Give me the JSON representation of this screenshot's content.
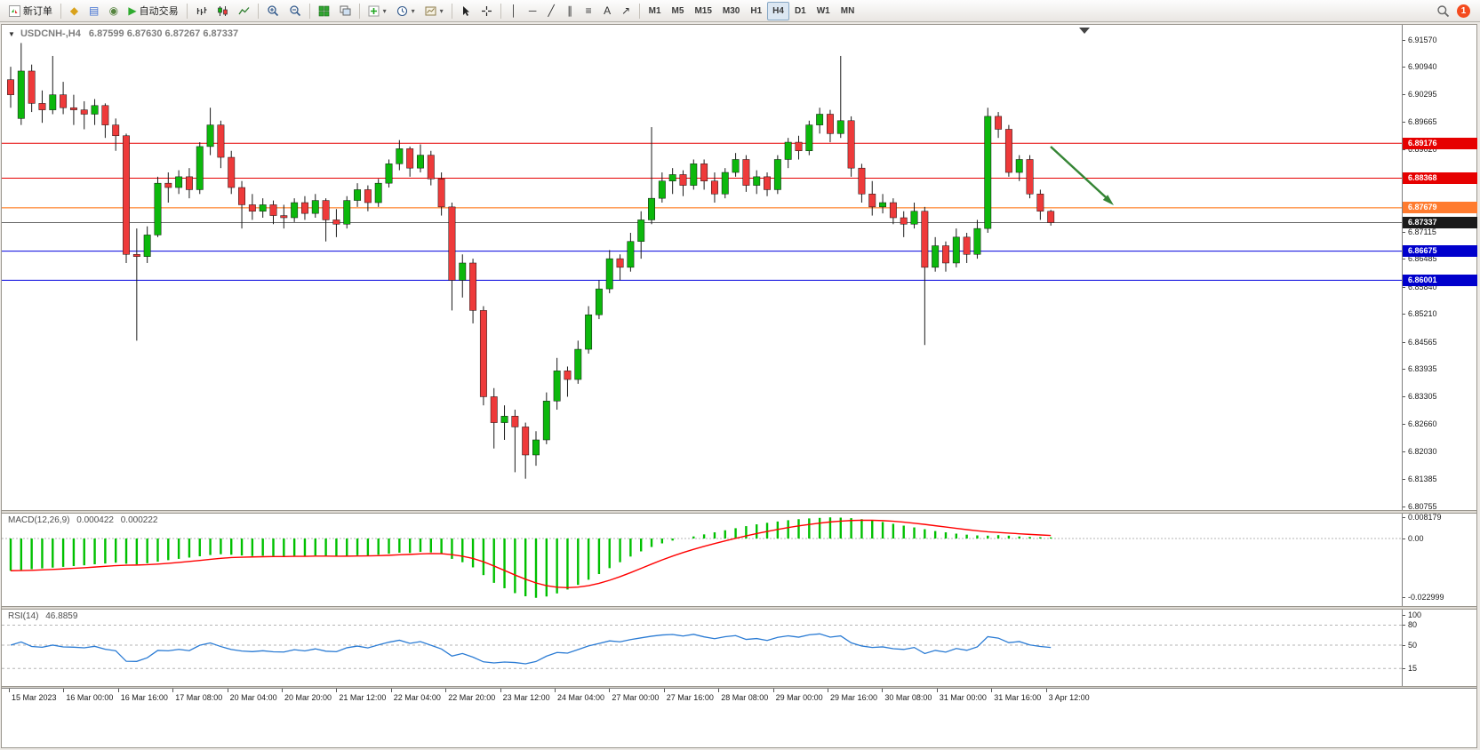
{
  "toolbar": {
    "new_order_label": "新订单",
    "auto_trading_label": "自动交易",
    "timeframes": [
      "M1",
      "M5",
      "M15",
      "M30",
      "H1",
      "H4",
      "D1",
      "W1",
      "MN"
    ],
    "active_timeframe": "H4",
    "notification_count": "1",
    "notification_color": "#f44b1e",
    "drawing_tools": [
      {
        "name": "vertical-line-icon",
        "glyph": "│"
      },
      {
        "name": "horizontal-line-icon",
        "glyph": "─"
      },
      {
        "name": "trendline-icon",
        "glyph": "╱"
      },
      {
        "name": "equidistant-channel-icon",
        "glyph": "∥"
      },
      {
        "name": "fibonacci-retracement-icon",
        "glyph": "≡"
      },
      {
        "name": "text-label-icon",
        "glyph": "A"
      },
      {
        "name": "arrows-icon",
        "glyph": "↗"
      }
    ]
  },
  "chart": {
    "title_symbol": "USDCNH-,H4",
    "title_ohlc": "6.87599 6.87630 6.87267 6.87337",
    "up_color": "#0cb80c",
    "down_color": "#ee3a3a",
    "wick_color": "#1a1a1a",
    "axis_labels": [
      "6.91570",
      "6.90940",
      "6.90295",
      "6.89665",
      "6.89020",
      "6.87115",
      "6.86485",
      "6.85840",
      "6.85210",
      "6.84565",
      "6.83935",
      "6.83305",
      "6.82660",
      "6.82030",
      "6.81385",
      "6.80755"
    ],
    "hlines": [
      {
        "price": 6.89176,
        "label": "6.89176",
        "line_color": "#e60000",
        "badge_bg": "#e60000"
      },
      {
        "price": 6.88368,
        "label": "6.88368",
        "line_color": "#e60000",
        "badge_bg": "#e60000"
      },
      {
        "price": 6.87679,
        "label": "6.87679",
        "line_color": "#ff6a00",
        "badge_bg": "#ff7b2e"
      },
      {
        "price": 6.86675,
        "label": "6.86675",
        "line_color": "#0000dd",
        "badge_bg": "#0000cc"
      },
      {
        "price": 6.86001,
        "label": "6.86001",
        "line_color": "#0000dd",
        "badge_bg": "#0000cc"
      },
      {
        "price": 6.87337,
        "label": "6.87337",
        "line_color": "#666666",
        "badge_bg": "#1a1a1a"
      }
    ],
    "arrow": {
      "color": "#358535"
    },
    "candles": [
      [
        6.9065,
        6.9095,
        6.9,
        6.903
      ],
      [
        6.8975,
        6.915,
        6.896,
        6.9085
      ],
      [
        6.9085,
        6.91,
        6.899,
        6.901
      ],
      [
        6.901,
        6.904,
        6.8965,
        6.8995
      ],
      [
        6.8995,
        6.912,
        6.8985,
        6.903
      ],
      [
        6.903,
        6.906,
        6.8985,
        6.9
      ],
      [
        6.9,
        6.903,
        6.896,
        6.8995
      ],
      [
        6.8995,
        6.9015,
        6.895,
        6.8985
      ],
      [
        6.8985,
        6.902,
        6.896,
        6.9005
      ],
      [
        6.9005,
        6.901,
        6.893,
        6.896
      ],
      [
        6.896,
        6.8975,
        6.89,
        6.8935
      ],
      [
        6.8935,
        6.894,
        6.864,
        6.866
      ],
      [
        6.866,
        6.872,
        6.846,
        6.8655
      ],
      [
        6.8655,
        6.8725,
        6.864,
        6.8705
      ],
      [
        6.8705,
        6.884,
        6.87,
        6.8825
      ],
      [
        6.8825,
        6.885,
        6.878,
        6.8815
      ],
      [
        6.8815,
        6.8855,
        6.88,
        6.884
      ],
      [
        6.884,
        6.886,
        6.879,
        6.881
      ],
      [
        6.881,
        6.892,
        6.88,
        6.891
      ],
      [
        6.891,
        6.9,
        6.889,
        6.896
      ],
      [
        6.896,
        6.897,
        6.886,
        6.8885
      ],
      [
        6.8885,
        6.89,
        6.88,
        6.8815
      ],
      [
        6.8815,
        6.883,
        6.872,
        6.8775
      ],
      [
        6.8775,
        6.88,
        6.874,
        6.876
      ],
      [
        6.876,
        6.879,
        6.8745,
        6.8775
      ],
      [
        6.8775,
        6.8785,
        6.873,
        6.875
      ],
      [
        6.875,
        6.8775,
        6.872,
        6.8745
      ],
      [
        6.8745,
        6.879,
        6.8735,
        6.878
      ],
      [
        6.878,
        6.8795,
        6.874,
        6.8755
      ],
      [
        6.8755,
        6.88,
        6.8745,
        6.8785
      ],
      [
        6.8785,
        6.879,
        6.869,
        6.874
      ],
      [
        6.874,
        6.8765,
        6.87,
        6.873
      ],
      [
        6.873,
        6.8795,
        6.872,
        6.8785
      ],
      [
        6.8785,
        6.8825,
        6.877,
        6.881
      ],
      [
        6.881,
        6.882,
        6.876,
        6.878
      ],
      [
        6.878,
        6.8835,
        6.877,
        6.8825
      ],
      [
        6.8825,
        6.888,
        6.8815,
        6.887
      ],
      [
        6.887,
        6.8925,
        6.8855,
        6.8905
      ],
      [
        6.8905,
        6.891,
        6.884,
        6.886
      ],
      [
        6.886,
        6.8915,
        6.885,
        6.889
      ],
      [
        6.889,
        6.89,
        6.882,
        6.8835
      ],
      [
        6.8835,
        6.885,
        6.875,
        6.877
      ],
      [
        6.877,
        6.878,
        6.853,
        6.86
      ],
      [
        6.86,
        6.866,
        6.856,
        6.864
      ],
      [
        6.864,
        6.865,
        6.85,
        6.853
      ],
      [
        6.853,
        6.854,
        6.831,
        6.833
      ],
      [
        6.833,
        6.835,
        6.821,
        6.827
      ],
      [
        6.827,
        6.831,
        6.823,
        6.8285
      ],
      [
        6.8285,
        6.83,
        6.8155,
        6.826
      ],
      [
        6.826,
        6.827,
        6.814,
        6.8195
      ],
      [
        6.8195,
        6.825,
        6.817,
        6.823
      ],
      [
        6.823,
        6.834,
        6.822,
        6.832
      ],
      [
        6.832,
        6.842,
        6.83,
        6.839
      ],
      [
        6.839,
        6.84,
        6.833,
        6.837
      ],
      [
        6.837,
        6.846,
        6.836,
        6.844
      ],
      [
        6.844,
        6.854,
        6.843,
        6.852
      ],
      [
        6.852,
        6.86,
        6.851,
        6.858
      ],
      [
        6.858,
        6.867,
        6.857,
        6.865
      ],
      [
        6.865,
        6.866,
        6.86,
        6.863
      ],
      [
        6.863,
        6.871,
        6.862,
        6.869
      ],
      [
        6.869,
        6.876,
        6.865,
        6.874
      ],
      [
        6.874,
        6.8955,
        6.873,
        6.879
      ],
      [
        6.879,
        6.885,
        6.878,
        6.883
      ],
      [
        6.883,
        6.886,
        6.88,
        6.8845
      ],
      [
        6.8845,
        6.8855,
        6.8795,
        6.882
      ],
      [
        6.882,
        6.888,
        6.881,
        6.887
      ],
      [
        6.887,
        6.888,
        6.881,
        6.883
      ],
      [
        6.883,
        6.885,
        6.878,
        6.88
      ],
      [
        6.88,
        6.886,
        6.879,
        6.885
      ],
      [
        6.885,
        6.8895,
        6.884,
        6.888
      ],
      [
        6.888,
        6.889,
        6.8805,
        6.882
      ],
      [
        6.882,
        6.8855,
        6.88,
        6.884
      ],
      [
        6.884,
        6.885,
        6.8795,
        6.881
      ],
      [
        6.881,
        6.889,
        6.88,
        6.888
      ],
      [
        6.888,
        6.893,
        6.886,
        6.892
      ],
      [
        6.892,
        6.8935,
        6.888,
        6.89
      ],
      [
        6.89,
        6.897,
        6.889,
        6.896
      ],
      [
        6.896,
        6.9,
        6.894,
        6.8985
      ],
      [
        6.8985,
        6.8995,
        6.892,
        6.894
      ],
      [
        6.894,
        6.912,
        6.893,
        6.897
      ],
      [
        6.897,
        6.898,
        6.884,
        6.886
      ],
      [
        6.886,
        6.887,
        6.878,
        6.88
      ],
      [
        6.88,
        6.883,
        6.875,
        6.877
      ],
      [
        6.877,
        6.88,
        6.8755,
        6.878
      ],
      [
        6.878,
        6.879,
        6.873,
        6.8745
      ],
      [
        6.8745,
        6.876,
        6.87,
        6.873
      ],
      [
        6.873,
        6.878,
        6.872,
        6.876
      ],
      [
        6.876,
        6.877,
        6.845,
        6.863
      ],
      [
        6.863,
        6.87,
        6.862,
        6.868
      ],
      [
        6.868,
        6.869,
        6.862,
        6.864
      ],
      [
        6.864,
        6.872,
        6.863,
        6.87
      ],
      [
        6.87,
        6.871,
        6.864,
        6.866
      ],
      [
        6.866,
        6.874,
        6.865,
        6.872
      ],
      [
        6.872,
        6.9,
        6.871,
        6.898
      ],
      [
        6.898,
        6.899,
        6.893,
        6.895
      ],
      [
        6.895,
        6.896,
        6.884,
        6.885
      ],
      [
        6.885,
        6.889,
        6.883,
        6.888
      ],
      [
        6.888,
        6.889,
        6.879,
        6.88
      ],
      [
        6.88,
        6.881,
        6.874,
        6.876
      ],
      [
        6.87599,
        6.8763,
        6.87267,
        6.87337
      ]
    ]
  },
  "macd": {
    "label": "MACD(12,26,9)",
    "value_main": "0.000422",
    "value_signal": "0.000222",
    "axis_labels": [
      "0.008179",
      "0.00",
      "-0.022999"
    ],
    "hist_color": "#00c000",
    "signal_color": "#ff0000",
    "histogram": [
      -0.0125,
      -0.0122,
      -0.0119,
      -0.0116,
      -0.0113,
      -0.011,
      -0.0107,
      -0.0104,
      -0.01,
      -0.0097,
      -0.0094,
      -0.0098,
      -0.01,
      -0.0096,
      -0.009,
      -0.0084,
      -0.0079,
      -0.0074,
      -0.0069,
      -0.0064,
      -0.0061,
      -0.0063,
      -0.0066,
      -0.0068,
      -0.0067,
      -0.0068,
      -0.0069,
      -0.0067,
      -0.0068,
      -0.0066,
      -0.0068,
      -0.007,
      -0.0068,
      -0.0065,
      -0.0066,
      -0.0063,
      -0.0059,
      -0.0055,
      -0.0056,
      -0.0052,
      -0.0054,
      -0.006,
      -0.0079,
      -0.0092,
      -0.0112,
      -0.0142,
      -0.0172,
      -0.0193,
      -0.0212,
      -0.0224,
      -0.023,
      -0.0225,
      -0.0213,
      -0.0198,
      -0.018,
      -0.016,
      -0.0138,
      -0.0115,
      -0.0092,
      -0.007,
      -0.005,
      -0.0033,
      -0.0019,
      -0.0008,
      0.0,
      0.0008,
      0.0016,
      0.0024,
      0.0032,
      0.004,
      0.0048,
      0.0055,
      0.0061,
      0.0066,
      0.0071,
      0.0075,
      0.0078,
      0.008,
      0.0082,
      0.0081,
      0.0079,
      0.0075,
      0.007,
      0.0064,
      0.0057,
      0.005,
      0.0043,
      0.0036,
      0.0029,
      0.0024,
      0.0019,
      0.0015,
      0.0012,
      0.0011,
      0.0013,
      0.0011,
      0.0008,
      0.0006,
      0.0005,
      0.000422
    ]
  },
  "rsi": {
    "label": "RSI(14)",
    "value": "46.8859",
    "axis_labels": [
      "100",
      "80",
      "50",
      "15"
    ],
    "levels": [
      80,
      50,
      15
    ],
    "line_color": "#2a7bd4"
  },
  "time_axis": {
    "labels": [
      "15 Mar 2023",
      "16 Mar 00:00",
      "16 Mar 16:00",
      "17 Mar 08:00",
      "20 Mar 04:00",
      "20 Mar 20:00",
      "21 Mar 12:00",
      "22 Mar 04:00",
      "22 Mar 20:00",
      "23 Mar 12:00",
      "24 Mar 04:00",
      "27 Mar 00:00",
      "27 Mar 16:00",
      "28 Mar 08:00",
      "29 Mar 00:00",
      "29 Mar 16:00",
      "30 Mar 08:00",
      "31 Mar 00:00",
      "31 Mar 16:00",
      "3 Apr 12:00"
    ]
  }
}
